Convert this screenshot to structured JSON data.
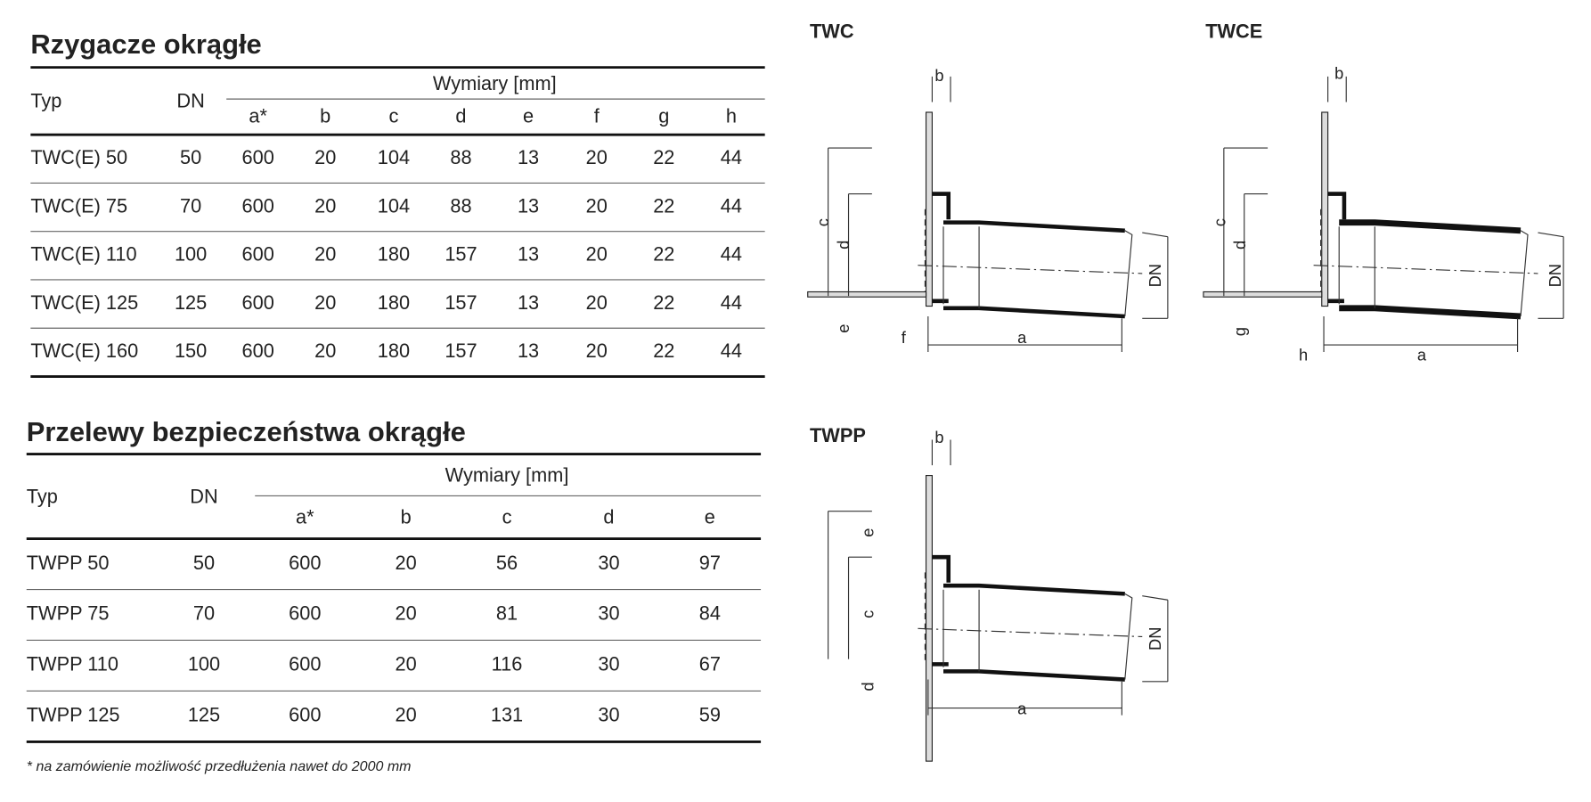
{
  "table1": {
    "title": "Rzygacze okrągłe",
    "headers": {
      "typ": "Typ",
      "dn": "DN",
      "group": "Wymiary [mm]",
      "cols": [
        "a*",
        "b",
        "c",
        "d",
        "e",
        "f",
        "g",
        "h"
      ]
    },
    "rows": [
      [
        "TWC(E)  50",
        "50",
        "600",
        "20",
        "104",
        "88",
        "13",
        "20",
        "22",
        "44"
      ],
      [
        "TWC(E)  75",
        "70",
        "600",
        "20",
        "104",
        "88",
        "13",
        "20",
        "22",
        "44"
      ],
      [
        "TWC(E) 110",
        "100",
        "600",
        "20",
        "180",
        "157",
        "13",
        "20",
        "22",
        "44"
      ],
      [
        "TWC(E) 125",
        "125",
        "600",
        "20",
        "180",
        "157",
        "13",
        "20",
        "22",
        "44"
      ],
      [
        "TWC(E) 160",
        "150",
        "600",
        "20",
        "180",
        "157",
        "13",
        "20",
        "22",
        "44"
      ]
    ]
  },
  "table2": {
    "title": "Przelewy bezpieczeństwa okrągłe",
    "headers": {
      "typ": "Typ",
      "dn": "DN",
      "group": "Wymiary [mm]",
      "cols": [
        "a*",
        "b",
        "c",
        "d",
        "e"
      ]
    },
    "rows": [
      [
        "TWPP  50",
        "50",
        "600",
        "20",
        "56",
        "30",
        "97"
      ],
      [
        "TWPP  75",
        "70",
        "600",
        "20",
        "81",
        "30",
        "84"
      ],
      [
        "TWPP 110",
        "100",
        "600",
        "20",
        "116",
        "30",
        "67"
      ],
      [
        "TWPP 125",
        "125",
        "600",
        "20",
        "131",
        "30",
        "59"
      ]
    ]
  },
  "footnote": "* na zamówienie możliwość przedłużenia nawet do 2000 mm",
  "diagrams": [
    {
      "title": "TWC",
      "labels": [
        "b",
        "c",
        "d",
        "e",
        "f",
        "a",
        "DN"
      ]
    },
    {
      "title": "TWCE",
      "labels": [
        "b",
        "c",
        "d",
        "g",
        "h",
        "a",
        "DN"
      ]
    },
    {
      "title": "TWPP",
      "labels": [
        "b",
        "e",
        "c",
        "d",
        "a",
        "DN"
      ]
    }
  ]
}
